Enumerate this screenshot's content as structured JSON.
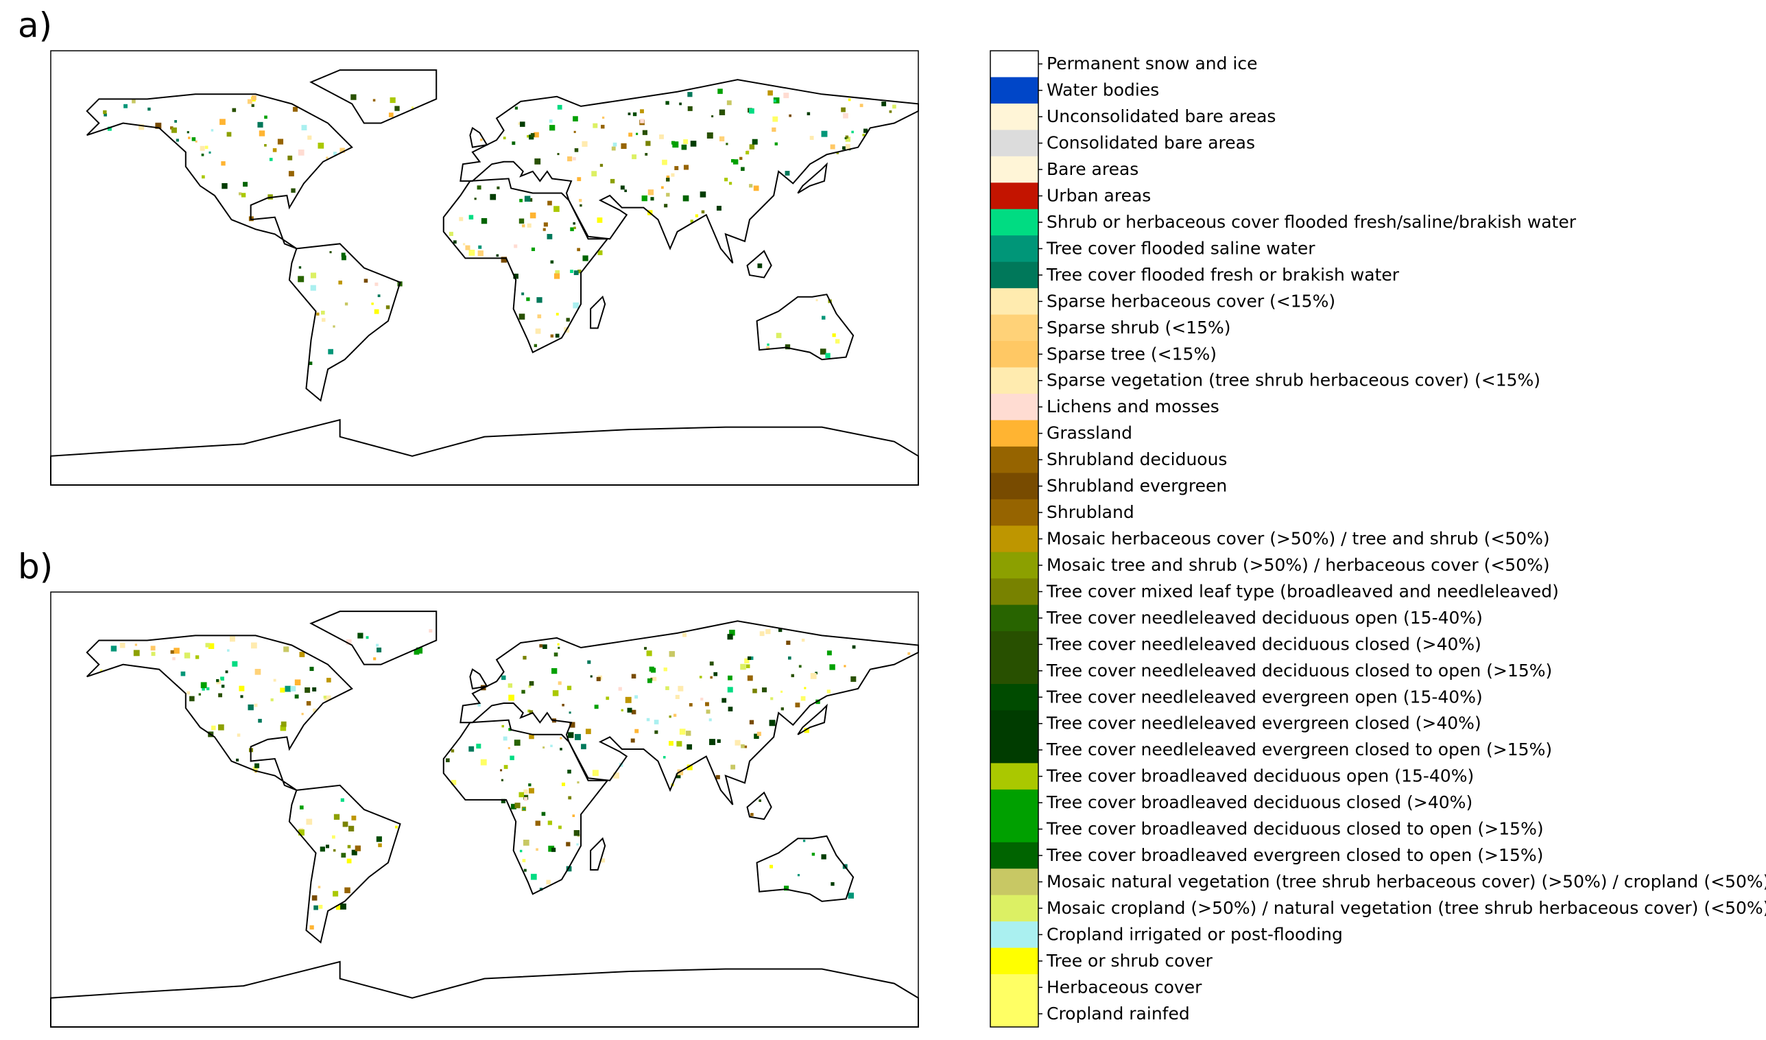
{
  "panels": [
    {
      "label": "a)"
    },
    {
      "label": "b)"
    }
  ],
  "legend": {
    "items": [
      {
        "label": "Permanent snow and ice",
        "color": "#ffffff"
      },
      {
        "label": "Water bodies",
        "color": "#0046c8"
      },
      {
        "label": "Unconsolidated bare areas",
        "color": "#fff5d7"
      },
      {
        "label": "Consolidated bare areas",
        "color": "#dcdcdc"
      },
      {
        "label": "Bare areas",
        "color": "#fff5d7"
      },
      {
        "label": "Urban areas",
        "color": "#c31400"
      },
      {
        "label": "Shrub or herbaceous cover flooded fresh/saline/brakish water",
        "color": "#00dc82"
      },
      {
        "label": "Tree cover flooded saline water",
        "color": "#009678"
      },
      {
        "label": "Tree cover flooded fresh or brakish water",
        "color": "#00785a"
      },
      {
        "label": "Sparse herbaceous cover (<15%)",
        "color": "#ffebaf"
      },
      {
        "label": "Sparse shrub (<15%)",
        "color": "#ffd278"
      },
      {
        "label": "Sparse tree (<15%)",
        "color": "#ffc864"
      },
      {
        "label": "Sparse vegetation (tree shrub herbaceous cover) (<15%)",
        "color": "#ffebaf"
      },
      {
        "label": "Lichens and mosses",
        "color": "#ffdcd2"
      },
      {
        "label": "Grassland",
        "color": "#ffb432"
      },
      {
        "label": "Shrubland deciduous",
        "color": "#966400"
      },
      {
        "label": "Shrubland evergreen",
        "color": "#784b00"
      },
      {
        "label": "Shrubland",
        "color": "#966400"
      },
      {
        "label": "Mosaic herbaceous cover (>50%) / tree and shrub (<50%)",
        "color": "#be9600"
      },
      {
        "label": "Mosaic tree and shrub (>50%) / herbaceous cover (<50%)",
        "color": "#8ca000"
      },
      {
        "label": "Tree cover mixed leaf type (broadleaved and needleleaved)",
        "color": "#788200"
      },
      {
        "label": "Tree cover needleleaved deciduous open (15-40%)",
        "color": "#286400"
      },
      {
        "label": "Tree cover needleleaved deciduous closed (>40%)",
        "color": "#285000"
      },
      {
        "label": "Tree cover needleleaved deciduous closed to open (>15%)",
        "color": "#285000"
      },
      {
        "label": "Tree cover needleleaved evergreen open (15-40%)",
        "color": "#004b00"
      },
      {
        "label": "Tree cover needleleaved evergreen closed (>40%)",
        "color": "#003c00"
      },
      {
        "label": "Tree cover needleleaved evergreen closed to open (>15%)",
        "color": "#003c00"
      },
      {
        "label": "Tree cover broadleaved deciduous open (15-40%)",
        "color": "#aac800"
      },
      {
        "label": "Tree cover broadleaved deciduous closed (>40%)",
        "color": "#00a000"
      },
      {
        "label": "Tree cover broadleaved deciduous closed to open (>15%)",
        "color": "#00a000"
      },
      {
        "label": "Tree cover broadleaved evergreen closed to open (>15%)",
        "color": "#006400"
      },
      {
        "label": "Mosaic natural vegetation (tree shrub herbaceous cover) (>50%) / cropland (<50%)",
        "color": "#c8c864"
      },
      {
        "label": "Mosaic cropland (>50%) / natural vegetation (tree shrub herbaceous cover) (<50%)",
        "color": "#dcf064"
      },
      {
        "label": "Cropland irrigated or post-flooding",
        "color": "#aaf0f0"
      },
      {
        "label": "Tree or shrub cover",
        "color": "#ffff00"
      },
      {
        "label": "Herbaceous cover",
        "color": "#ffff64"
      },
      {
        "label": "Cropland rainfed",
        "color": "#ffff64"
      }
    ]
  }
}
